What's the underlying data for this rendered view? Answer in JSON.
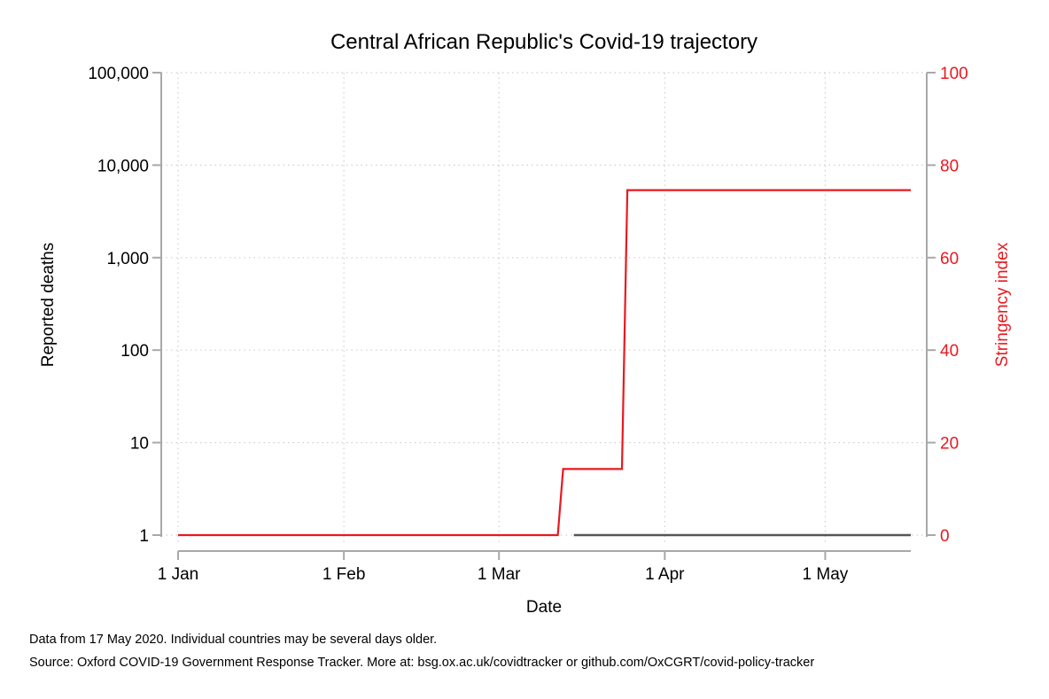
{
  "chart_data": {
    "type": "line",
    "title": "Central African Republic's Covid-19 trajectory",
    "xlabel": "Date",
    "ylabel_left": "Reported deaths",
    "ylabel_right": "Stringency index",
    "x_ticks": [
      "1 Jan",
      "1 Feb",
      "1 Mar",
      "1 Apr",
      "1 May"
    ],
    "x_tick_dates": [
      "2020-01-01",
      "2020-02-01",
      "2020-03-01",
      "2020-04-01",
      "2020-05-01"
    ],
    "x_range": [
      "2019-12-30",
      "2020-05-21"
    ],
    "left_axis": {
      "scale": "log",
      "ticks": [
        1,
        10,
        100,
        1000,
        10000,
        100000
      ],
      "tick_labels": [
        "1",
        "10",
        "100",
        "1,000",
        "10,000",
        "100,000"
      ],
      "range": [
        1,
        100000
      ]
    },
    "right_axis": {
      "scale": "linear",
      "ticks": [
        0,
        20,
        40,
        60,
        80,
        100
      ],
      "tick_labels": [
        "0",
        "20",
        "40",
        "60",
        "80",
        "100"
      ],
      "range": [
        0,
        100
      ]
    },
    "grid": true,
    "series": [
      {
        "name": "Stringency index",
        "axis": "right",
        "color": "#e8191f",
        "step": true,
        "points": [
          {
            "date": "2020-01-01",
            "value": 0
          },
          {
            "date": "2020-03-12",
            "value": 0
          },
          {
            "date": "2020-03-13",
            "value": 14.29
          },
          {
            "date": "2020-03-24",
            "value": 14.29
          },
          {
            "date": "2020-03-25",
            "value": 74.6
          },
          {
            "date": "2020-05-17",
            "value": 74.6
          }
        ]
      },
      {
        "name": "Reported deaths",
        "axis": "left",
        "color": "#555555",
        "points": [
          {
            "date": "2020-03-15",
            "value": 1
          },
          {
            "date": "2020-05-17",
            "value": 1
          }
        ]
      }
    ]
  },
  "notes": {
    "line1": "Data from 17 May 2020. Individual countries may be several days older.",
    "line2": "Source: Oxford COVID-19 Government Response Tracker. More at: bsg.ox.ac.uk/covidtracker or github.com/OxCGRT/covid-policy-tracker"
  },
  "colors": {
    "stringency": "#e8191f",
    "deaths": "#555555",
    "axis": "#a8a8a8"
  }
}
